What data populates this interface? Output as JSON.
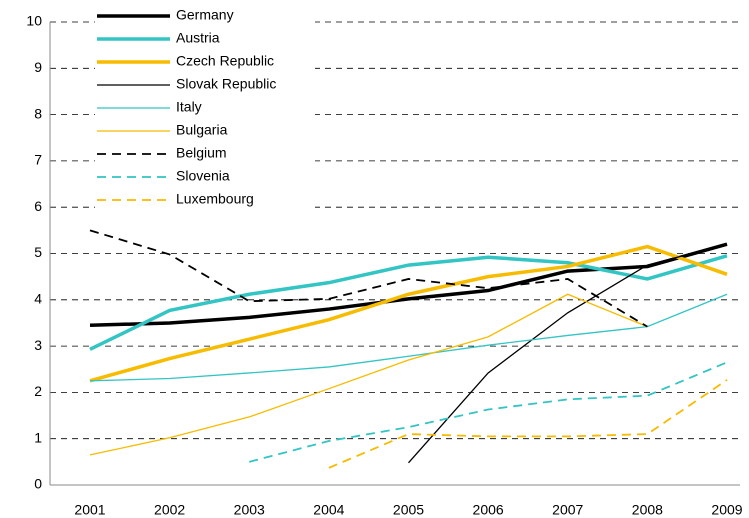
{
  "chart_data": {
    "type": "line",
    "categories": [
      "2001",
      "2002",
      "2003",
      "2004",
      "2005",
      "2006",
      "2007",
      "2008",
      "2009"
    ],
    "ylim": [
      0,
      10
    ],
    "yticks": [
      0,
      1,
      2,
      3,
      4,
      5,
      6,
      7,
      8,
      9,
      10
    ],
    "grid": true,
    "legend": "top-left",
    "series": [
      {
        "name": "Germany",
        "color": "#000000",
        "width": 3.5,
        "dash": false,
        "values": [
          3.45,
          3.5,
          3.62,
          3.8,
          4.02,
          4.2,
          4.62,
          4.72,
          5.2
        ]
      },
      {
        "name": "Austria",
        "color": "#33c4c4",
        "width": 3.5,
        "dash": false,
        "values": [
          2.93,
          3.77,
          4.12,
          4.37,
          4.75,
          4.92,
          4.8,
          4.45,
          4.95
        ]
      },
      {
        "name": "Czech Republic",
        "color": "#f7bb00",
        "width": 3.5,
        "dash": false,
        "values": [
          2.25,
          2.73,
          3.15,
          3.57,
          4.12,
          4.5,
          4.72,
          5.15,
          4.55
        ]
      },
      {
        "name": "Slovak Republic",
        "color": "#000000",
        "width": 1.3,
        "dash": false,
        "values": [
          null,
          null,
          null,
          null,
          0.48,
          2.42,
          3.72,
          4.75,
          5.2
        ]
      },
      {
        "name": "Italy",
        "color": "#33c4c4",
        "width": 1.3,
        "dash": false,
        "values": [
          2.25,
          2.3,
          2.42,
          2.55,
          2.78,
          3.02,
          3.23,
          3.42,
          4.12
        ]
      },
      {
        "name": "Bulgaria",
        "color": "#f7bb00",
        "width": 1.3,
        "dash": false,
        "values": [
          0.65,
          1.02,
          1.47,
          2.08,
          2.7,
          3.2,
          4.12,
          3.42,
          null
        ]
      },
      {
        "name": "Belgium",
        "color": "#000000",
        "width": 1.8,
        "dash": true,
        "values": [
          5.5,
          4.98,
          3.97,
          4.02,
          4.45,
          4.25,
          4.45,
          3.42,
          null
        ]
      },
      {
        "name": "Slovenia",
        "color": "#33c4c4",
        "width": 1.8,
        "dash": true,
        "values": [
          null,
          null,
          0.5,
          0.95,
          1.25,
          1.63,
          1.85,
          1.93,
          2.65
        ]
      },
      {
        "name": "Luxembourg",
        "color": "#f7bb00",
        "width": 1.8,
        "dash": true,
        "values": [
          null,
          null,
          null,
          0.37,
          1.1,
          1.05,
          1.05,
          1.1,
          2.27
        ]
      }
    ]
  }
}
